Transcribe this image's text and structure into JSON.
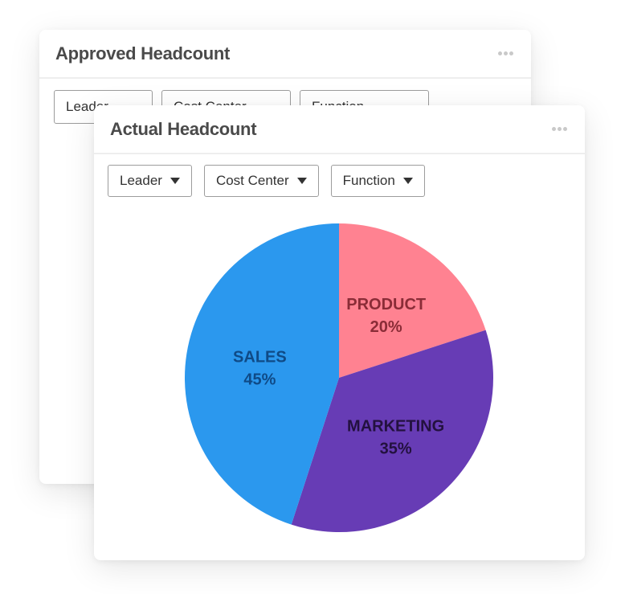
{
  "back_card": {
    "title": "Approved Headcount",
    "filters": [
      "Leader",
      "Cost Center",
      "Function"
    ]
  },
  "front_card": {
    "title": "Actual Headcount",
    "filters": [
      "Leader",
      "Cost Center",
      "Function"
    ]
  },
  "chart_data": {
    "type": "pie",
    "title": "Actual Headcount",
    "slices": [
      {
        "label": "PRODUCT",
        "value": 20,
        "value_label": "20%",
        "color": "#ff8291",
        "text_color": "#8a2c37"
      },
      {
        "label": "MARKETING",
        "value": 35,
        "value_label": "35%",
        "color": "#673cb5",
        "text_color": "#23113f"
      },
      {
        "label": "SALES",
        "value": 45,
        "value_label": "45%",
        "color": "#2b98ee",
        "text_color": "#0f4a86"
      }
    ],
    "start_angle_deg": 0,
    "direction": "clockwise"
  },
  "colors": {
    "title_text": "#4a4a4a",
    "header_divider": "#eeeeee",
    "menu_dots": "#c9c9c9",
    "filter_border": "#9c9c9c"
  }
}
